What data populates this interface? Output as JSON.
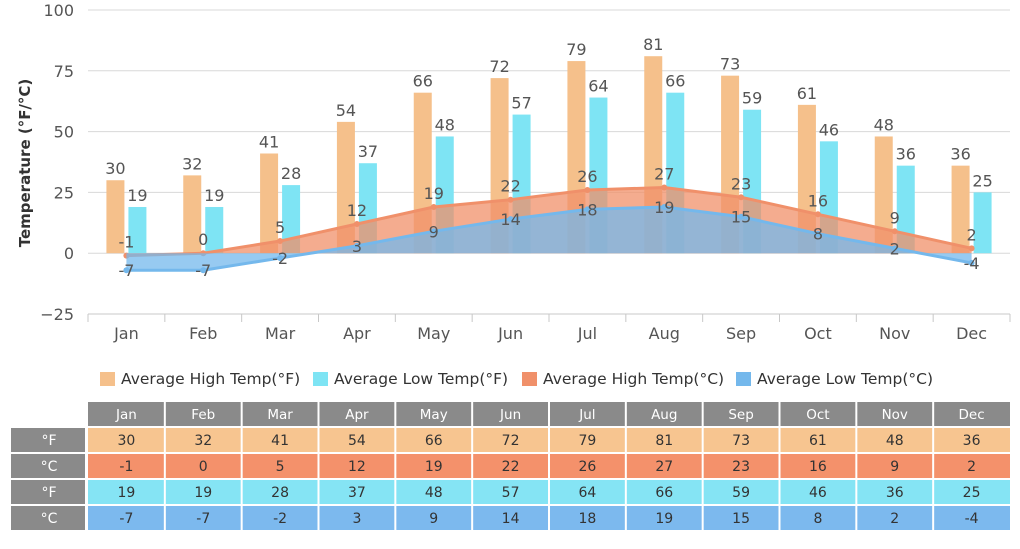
{
  "chart_data": {
    "type": "bar",
    "ylabel": "Temperature (°F/°C)",
    "ylim": [
      -25,
      100
    ],
    "yticks": [
      -25,
      0,
      25,
      50,
      75,
      100
    ],
    "grid": true,
    "legend_position": "bottom",
    "categories": [
      "Jan",
      "Feb",
      "Mar",
      "Apr",
      "May",
      "Jun",
      "Jul",
      "Aug",
      "Sep",
      "Oct",
      "Nov",
      "Dec"
    ],
    "series": [
      {
        "name": "Average High Temp(°F)",
        "kind": "bar",
        "color": "#f5c08b",
        "values": [
          30,
          32,
          41,
          54,
          66,
          72,
          79,
          81,
          73,
          61,
          48,
          36
        ]
      },
      {
        "name": "Average Low Temp(°F)",
        "kind": "bar",
        "color": "#7ee4f4",
        "values": [
          19,
          19,
          28,
          37,
          48,
          57,
          64,
          66,
          59,
          46,
          36,
          25
        ]
      },
      {
        "name": "Average High Temp(°C)",
        "kind": "area",
        "color": "#f0906a",
        "values": [
          -1,
          0,
          5,
          12,
          19,
          22,
          26,
          27,
          23,
          16,
          9,
          2
        ]
      },
      {
        "name": "Average Low Temp(°C)",
        "kind": "area",
        "color": "#74b8ec",
        "values": [
          -7,
          -7,
          -2,
          3,
          9,
          14,
          18,
          19,
          15,
          8,
          2,
          -4
        ]
      }
    ],
    "table": {
      "row_labels": [
        "°F",
        "°C",
        "°F",
        "°C"
      ],
      "row_colors": [
        "#f7c590",
        "#f4916b",
        "#85e4f4",
        "#7cb9ee"
      ]
    }
  }
}
